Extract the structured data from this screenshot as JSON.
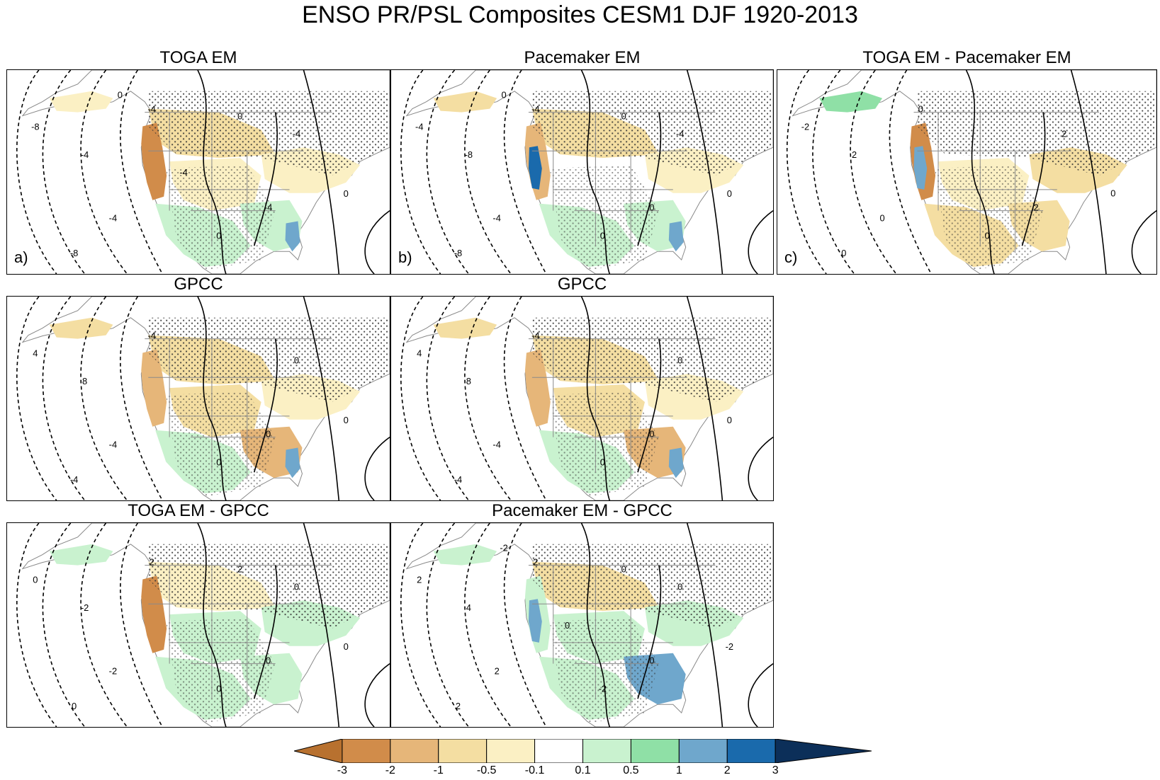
{
  "title": "ENSO PR/PSL Composites CESM1 DJF 1920-2013",
  "panels": [
    {
      "id": "toga-em",
      "title": "TOGA EM",
      "label": "a)",
      "contours": [
        "-8",
        "-4",
        "-4",
        "-8",
        "-4",
        "-4",
        "-4",
        "0",
        "0",
        "0",
        "0",
        "-4"
      ]
    },
    {
      "id": "pacemaker-em",
      "title": "Pacemaker EM",
      "label": "b)",
      "contours": [
        "-4",
        "-8",
        "-4",
        "-8",
        "-4",
        "-4",
        "0",
        "0",
        "0",
        "0",
        "0"
      ]
    },
    {
      "id": "toga-minus-pacemaker",
      "title": "TOGA EM - Pacemaker EM",
      "label": "c)",
      "contours": [
        "-2",
        "2",
        "0",
        "0",
        "0",
        "2",
        "2",
        "0",
        "0"
      ]
    },
    {
      "id": "gpcc-1",
      "title": "GPCC",
      "label": "",
      "contours": [
        "4",
        "8",
        "-4",
        "-4",
        "-4",
        "0",
        "0",
        "0",
        "0"
      ]
    },
    {
      "id": "gpcc-2",
      "title": "GPCC",
      "label": "",
      "contours": [
        "4",
        "8",
        "-4",
        "-4",
        "-4",
        "0",
        "0",
        "0",
        "0"
      ]
    },
    {
      "id": "toga-minus-gpcc",
      "title": "TOGA EM - GPCC",
      "label": "",
      "contours": [
        "0",
        "-2",
        "-2",
        "0",
        "2",
        "0",
        "0",
        "0",
        "0",
        "2"
      ]
    },
    {
      "id": "pacemaker-minus-gpcc",
      "title": "Pacemaker EM - GPCC",
      "label": "",
      "contours": [
        "2",
        "4",
        "2",
        "2",
        "2",
        "0",
        "0",
        "-2",
        "-2",
        "0",
        "-2",
        "0"
      ]
    }
  ],
  "colorbar": {
    "labels": [
      "-3",
      "-2",
      "-1",
      "-0.5",
      "-0.1",
      "0.1",
      "0.5",
      "1",
      "2",
      "3"
    ],
    "colors": [
      "#b8712f",
      "#d18c4a",
      "#e6b679",
      "#f4dea2",
      "#fbf0c4",
      "#ffffff",
      "#c9f2cf",
      "#8fe0a6",
      "#6fa7cc",
      "#1a6aac",
      "#0c2f59"
    ]
  }
}
